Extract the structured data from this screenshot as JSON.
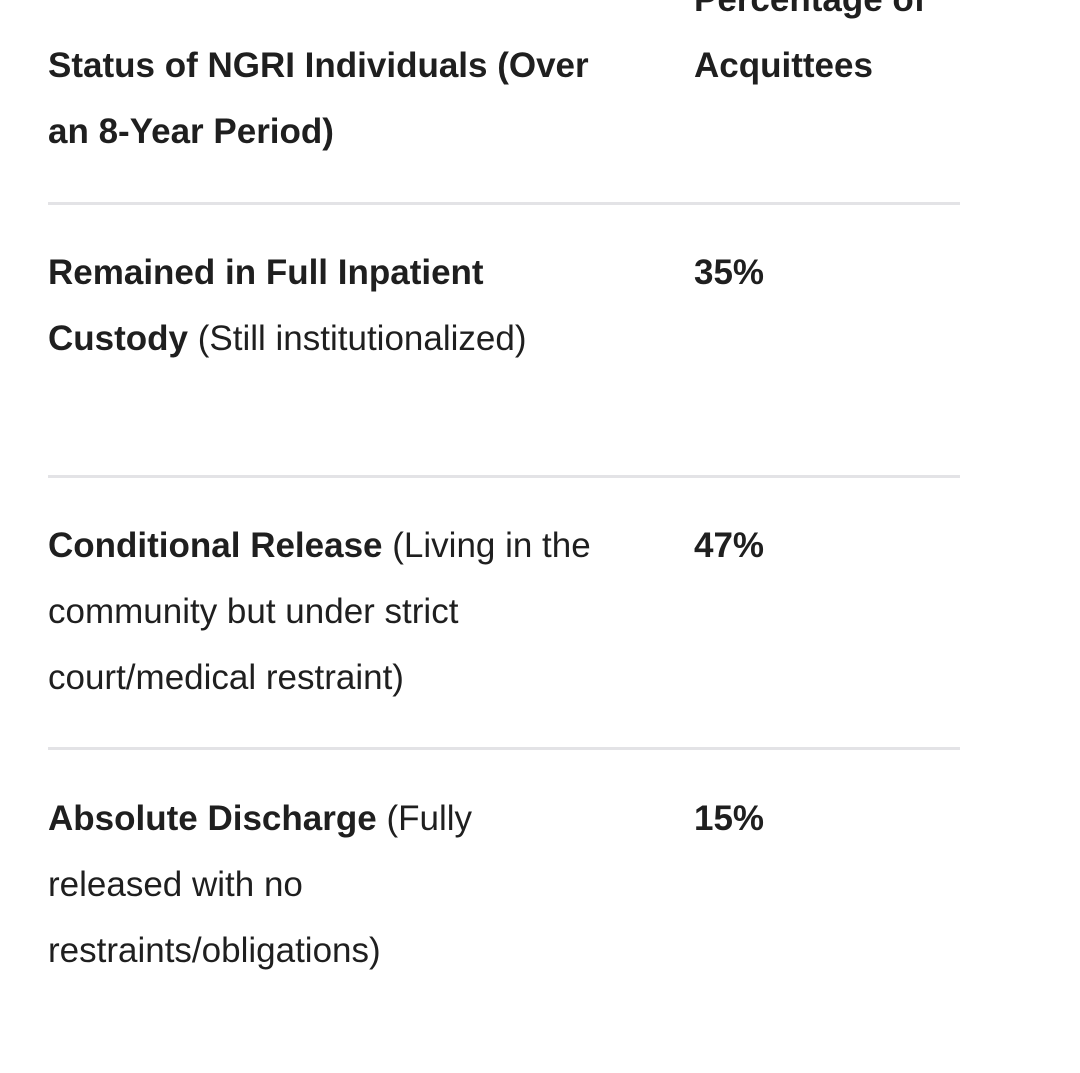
{
  "table": {
    "header": [
      "Status of NGRI Individuals (Over an 8-Year Period)",
      "Percentage of Acquittees"
    ],
    "rows": [
      {
        "status": "Remained in Full Inpatient Custody",
        "detail": "(Still institutionalized)",
        "percentage": "35%"
      },
      {
        "status": "Conditional Release",
        "detail": "(Living in the community but under strict court/medical restraint)",
        "percentage": "47%"
      },
      {
        "status": "Absolute Discharge",
        "detail": "(Fully released with no restraints/obligations)",
        "percentage": "15%"
      }
    ]
  }
}
